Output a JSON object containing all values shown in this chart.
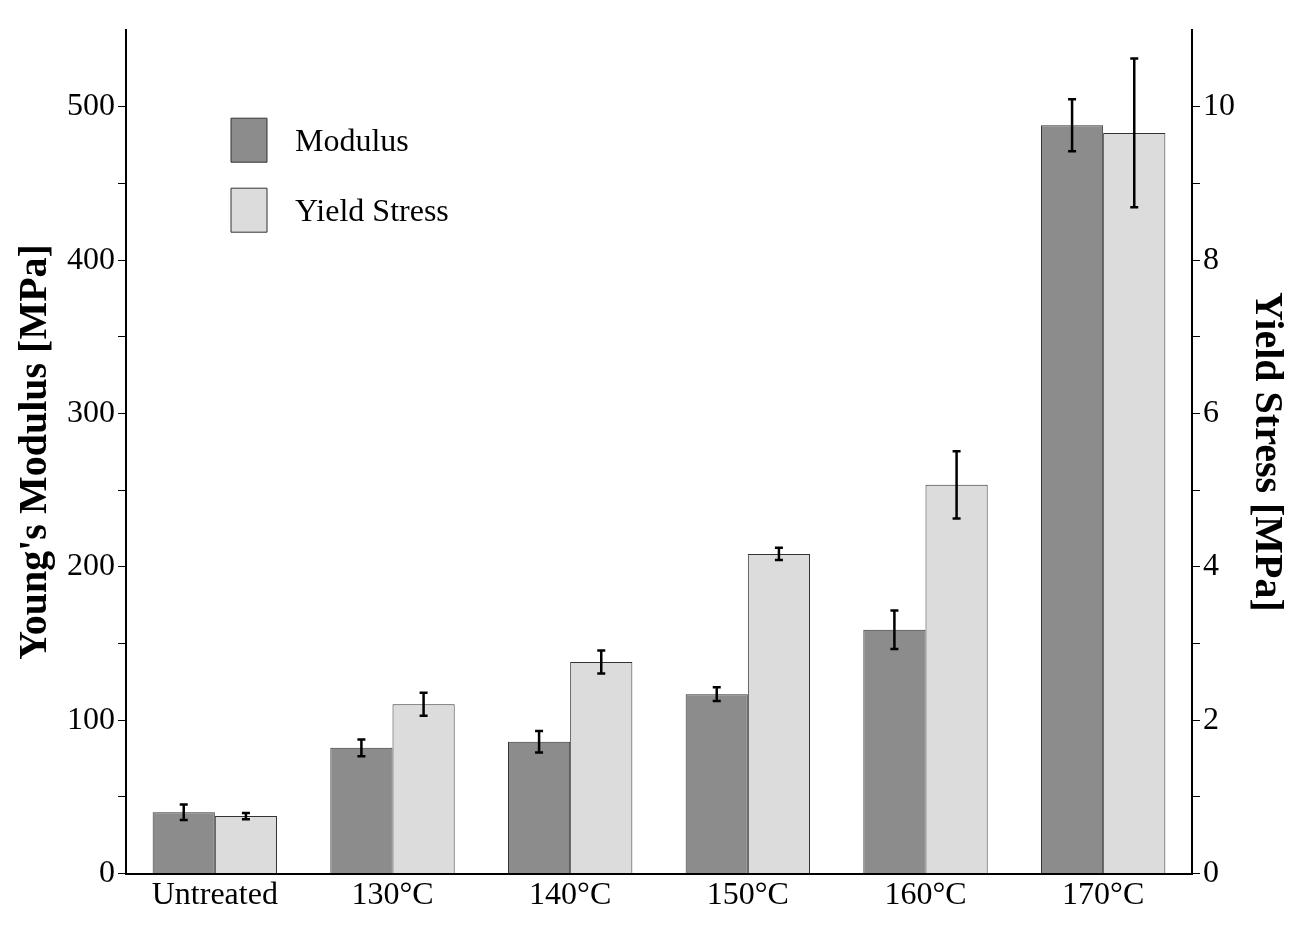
{
  "chart_data": {
    "type": "bar",
    "categories": [
      "Untreated",
      "130°C",
      "140°C",
      "150°C",
      "160°C",
      "170°C"
    ],
    "ylabel": "Young's Modulus [MPa]",
    "y2label": "Yield Stress [MPa]",
    "series": [
      {
        "name": "Modulus",
        "color": "#8c8c8c",
        "values": [
          40,
          82,
          86,
          117,
          159,
          488
        ],
        "errors": [
          5,
          5.5,
          7,
          4.5,
          12.5,
          17
        ]
      },
      {
        "name": "Yield Stress",
        "color": "#dcdcdc",
        "axis": "y2",
        "values": [
          0.75,
          2.21,
          2.76,
          4.17,
          5.07,
          9.66
        ],
        "errors": [
          0.04,
          0.15,
          0.15,
          0.08,
          0.44,
          0.97
        ]
      }
    ],
    "ylim": [
      0,
      550
    ],
    "yticks": [
      0,
      {
        "value": 50,
        "label": null
      },
      100,
      {
        "value": 150,
        "label": null
      },
      200,
      {
        "value": 250,
        "label": null
      },
      300,
      {
        "value": 350,
        "label": null
      },
      400,
      {
        "value": 450,
        "label": null
      },
      500
    ],
    "y2lim": [
      0,
      11
    ],
    "y2ticks": [
      0,
      {
        "value": 1,
        "label": null
      },
      2,
      {
        "value": 3,
        "label": null
      },
      4,
      {
        "value": 5,
        "label": null
      },
      6,
      {
        "value": 7,
        "label": null
      },
      8,
      {
        "value": 9,
        "label": null
      },
      10
    ],
    "grid": false,
    "legend": "top left"
  }
}
